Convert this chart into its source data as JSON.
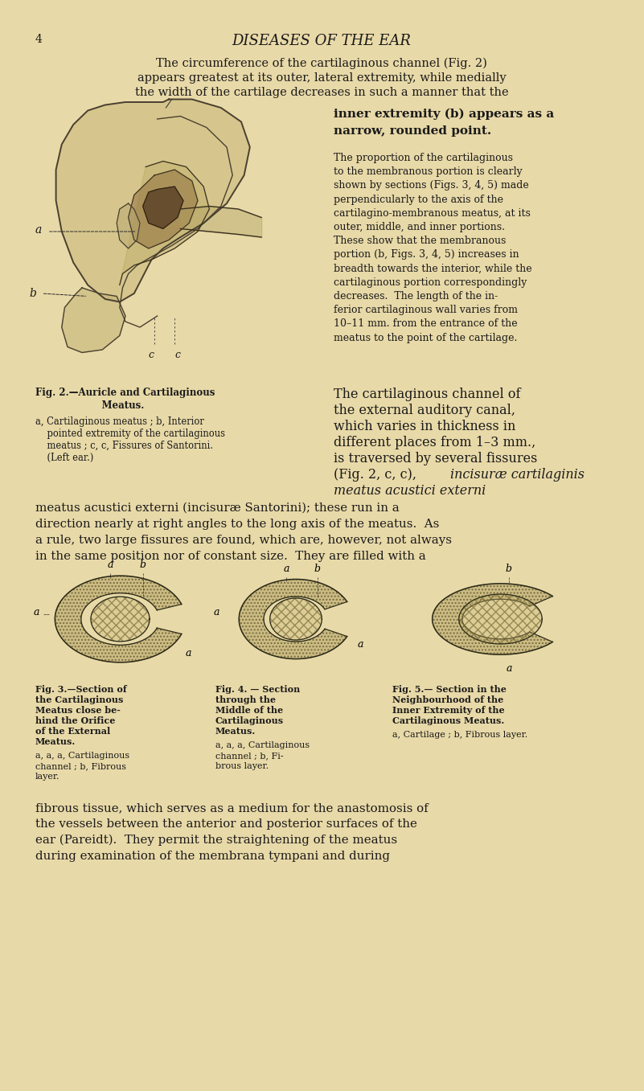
{
  "background_color": "#e8d9a8",
  "page_number": "4",
  "header_title": "DISEASES OF THE EAR",
  "text_color": "#1a1a1a",
  "bg": "#e8d9a8",
  "para1_line1": "The circumference of the cartilaginous channel (Fig. 2)",
  "para1_line2": "appears greatest at its outer, lateral extremity, while medially",
  "para1_line3": "the width of the cartilage decreases in such a manner that the",
  "bold_line1": "inner extremity (b) appears as a",
  "bold_line2": "narrow, rounded point.",
  "para2": "The proportion of the cartilaginous\nto the membranous portion is clearly\nshown by sections (Figs. 3, 4, 5) made\nperpendicularly to the axis of the\ncartilagino-membranous meatus, at its\nouter, middle, and inner portions.\nThese show that the membranous\nportion (b, Figs. 3, 4, 5) increases in\nbreadth towards the interior, while the\ncartilaginous portion correspondingly\ndecreases.  The length of the in-\nferior cartilaginous wall varies from\n10–11 mm. from the entrance of the\nmeatus to the point of the cartilage.",
  "fig2_cap_title": "Fig. 2.—Auricle and Cartilaginous\n         Meatus.",
  "fig2_cap_body": "a, Cartilaginous meatus ; b, Interior\n    pointed extremity of the cartilaginous\n    meatus ; c, c, Fissures of Santorini.\n    (Left ear.)",
  "right_para_large": "The cartilaginous channel of\nthe external auditory canal,\nwhich varies in thickness in\ndifferent places from 1–3 mm.,\nis traversed by several fissures\n(Fig. 2, c, c), ",
  "right_para_italic": "incisuræ cartilaginis\nmeatus acustici externi",
  "full_para": "meatus acustici externi (incisuræ Santorini); these run in a\ndirection nearly at right angles to the long axis of the meatus.  As\na rule, two large fissures are found, which are, however, not always\nin the same position nor of constant size.  They are filled with a",
  "fig3_title_line1": "Fig. 3.—Section of",
  "fig3_title_line2": "the Cartilaginous",
  "fig3_title_line3": "Meatus close be-",
  "fig3_title_line4": "hind the Orifice",
  "fig3_title_line5": "of the External",
  "fig3_title_line6": "Meatus.",
  "fig3_body": "a, a, a, Cartilaginous\nchannel ; b, Fibrous\nlayer.",
  "fig4_title_line1": "Fig. 4. — Section",
  "fig4_title_line2": "through the",
  "fig4_title_line3": "Middle of the",
  "fig4_title_line4": "Cartilaginous",
  "fig4_title_line5": "Meatus.",
  "fig4_body": "a, a, a, Cartilaginous\nchannel ; b, Fi-\nbrous layer.",
  "fig5_title_line1": "Fig. 5.— Section in the",
  "fig5_title_line2": "Neighbourhood of the",
  "fig5_title_line3": "Inner Extremity of the",
  "fig5_title_line4": "Cartilaginous Meatus.",
  "fig5_body": "a, Cartilage ; b, Fibrous layer.",
  "para4_line1": "fibrous tissue, which serves as a medium for the anastomosis of",
  "para4_line2": "the vessels between the anterior and posterior surfaces of the",
  "para4_line3": "ear (Pareidt).  They permit the straightening of the meatus",
  "para4_line4": "during examination of the membrana tympani and during"
}
